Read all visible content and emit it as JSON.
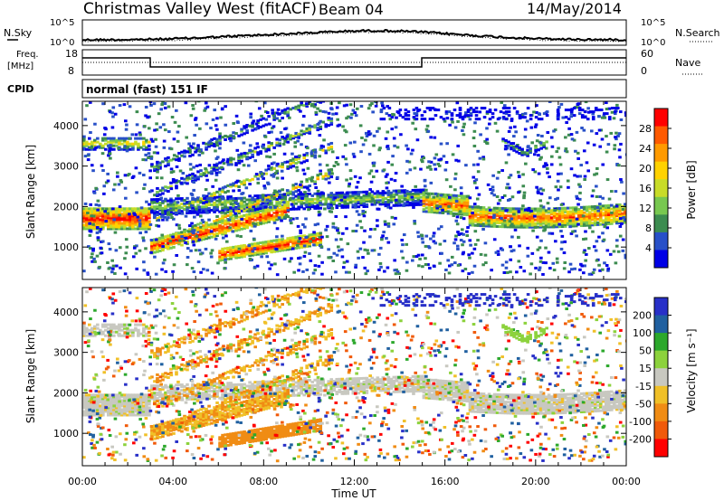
{
  "header": {
    "site": "Christmas Valley West (fitACF)",
    "beam": "Beam 04",
    "date": "14/May/2014"
  },
  "meta": {
    "nsky_label": "N.Sky",
    "nsearch_label": "N.Search",
    "freq_label_1": "Freq.",
    "freq_label_2": "[MHz]",
    "nave_label": "Nave",
    "cpid_label": "CPID",
    "cpid_value": "normal (fast) 151 IF",
    "noise_ticks_left": [
      "10^5",
      "10^0"
    ],
    "noise_ticks_right": [
      "10^5",
      "10^0"
    ],
    "freq_ticks": [
      "18",
      "8"
    ],
    "nave_ticks": [
      "60",
      "0"
    ]
  },
  "chart_data": [
    {
      "type": "heatmap",
      "name": "power",
      "ylabel": "Slant Range [km]",
      "y_ticks": [
        "4000",
        "3000",
        "2000",
        "1000"
      ],
      "ylim": [
        200,
        4600
      ],
      "colorbar_label": "Power [dB]",
      "colorbar_ticks": [
        "28",
        "24",
        "20",
        "16",
        "12",
        "8",
        "4"
      ],
      "colorbar_colors": [
        "#ff0000",
        "#ff5a00",
        "#ff9a00",
        "#ffd200",
        "#c8dc28",
        "#78c850",
        "#3c8c50",
        "#2850c8",
        "#0000e6"
      ]
    },
    {
      "type": "heatmap",
      "name": "velocity",
      "ylabel": "Slant Range [km]",
      "y_ticks": [
        "4000",
        "3000",
        "2000",
        "1000"
      ],
      "ylim": [
        200,
        4600
      ],
      "colorbar_label": "Velocity [m s⁻¹]",
      "colorbar_ticks": [
        "200",
        "100",
        "50",
        "15",
        "-15",
        "-50",
        "-100",
        "-200"
      ],
      "colorbar_colors": [
        "#2830c8",
        "#2060a0",
        "#2ca82c",
        "#8cd23c",
        "#c8c8c0",
        "#f0c028",
        "#f08c14",
        "#f05a0a",
        "#ff0000"
      ]
    }
  ],
  "x_axis": {
    "label": "Time UT",
    "ticks": [
      "00:00",
      "04:00",
      "08:00",
      "12:00",
      "16:00",
      "20:00",
      "00:00"
    ]
  }
}
